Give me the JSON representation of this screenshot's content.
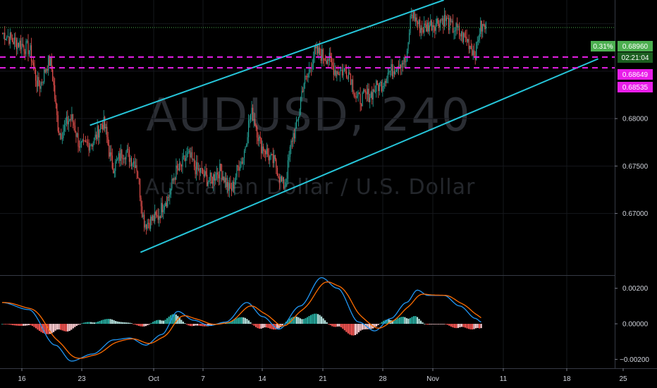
{
  "chart_data": {
    "type": "candlestick",
    "symbol_watermark": "AUDUSD, 240",
    "description_watermark": "Australian Dollar / U.S. Dollar",
    "price_axis": {
      "min": 0.6635,
      "max": 0.6925,
      "ticks": [
        "0.68000",
        "0.67500",
        "0.67000"
      ]
    },
    "macd_axis": {
      "min": -0.0025,
      "max": 0.0027,
      "ticks": [
        "0.00200",
        "0.00000",
        "−0.00200"
      ]
    },
    "x_ticks": [
      "16",
      "23",
      "Oct",
      "7",
      "14",
      "21",
      "28",
      "Nov",
      "11",
      "18",
      "25"
    ],
    "price_tags": {
      "change_pct": "0.31%",
      "last_price": "0.68960",
      "countdown": "02:21:04",
      "level_upper": "0.68649",
      "level_lower": "0.68535"
    },
    "horizontal_levels": [
      0.68649,
      0.68535
    ],
    "last_price_value": 0.6896,
    "channel_upper": {
      "start": [
        16.5,
        0.6793
      ],
      "end": [
        83,
        0.6925
      ]
    },
    "channel_lower": {
      "start": [
        26,
        0.6659
      ],
      "end": [
        112,
        0.6863
      ]
    },
    "anchors": [
      [
        0,
        0.689
      ],
      [
        3,
        0.688
      ],
      [
        5,
        0.6874
      ],
      [
        7,
        0.6835
      ],
      [
        9,
        0.686
      ],
      [
        11,
        0.6785
      ],
      [
        13,
        0.68
      ],
      [
        15,
        0.677
      ],
      [
        17,
        0.6775
      ],
      [
        19,
        0.6795
      ],
      [
        21,
        0.675
      ],
      [
        23,
        0.6765
      ],
      [
        25,
        0.6755
      ],
      [
        27,
        0.669
      ],
      [
        29,
        0.6695
      ],
      [
        31,
        0.6715
      ],
      [
        33,
        0.6745
      ],
      [
        35,
        0.676
      ],
      [
        37,
        0.6745
      ],
      [
        39,
        0.6735
      ],
      [
        41,
        0.6745
      ],
      [
        43,
        0.6725
      ],
      [
        45,
        0.6755
      ],
      [
        47,
        0.6805
      ],
      [
        49,
        0.677
      ],
      [
        51,
        0.6755
      ],
      [
        53,
        0.673
      ],
      [
        55,
        0.6785
      ],
      [
        57,
        0.684
      ],
      [
        59,
        0.687
      ],
      [
        61,
        0.6865
      ],
      [
        63,
        0.685
      ],
      [
        65,
        0.685
      ],
      [
        67,
        0.682
      ],
      [
        69,
        0.6825
      ],
      [
        71,
        0.6835
      ],
      [
        73,
        0.685
      ],
      [
        75,
        0.686
      ],
      [
        76,
        0.686
      ],
      [
        77,
        0.691
      ],
      [
        79,
        0.6895
      ],
      [
        81,
        0.69
      ],
      [
        83,
        0.6905
      ],
      [
        85,
        0.6895
      ],
      [
        87,
        0.6885
      ],
      [
        89,
        0.687
      ],
      [
        90,
        0.6896
      ]
    ],
    "macd_anchors": [
      [
        0,
        0.0012
      ],
      [
        5,
        0.0008
      ],
      [
        10,
        -0.0012
      ],
      [
        13,
        -0.0021
      ],
      [
        17,
        -0.0017
      ],
      [
        21,
        -0.0009
      ],
      [
        24,
        -0.0008
      ],
      [
        27,
        -0.0012
      ],
      [
        30,
        -0.0006
      ],
      [
        33,
        0.0007
      ],
      [
        36,
        0.0002
      ],
      [
        39,
        -0.0001
      ],
      [
        42,
        0.0001
      ],
      [
        46,
        0.0012
      ],
      [
        49,
        0.0004
      ],
      [
        52,
        -0.0003
      ],
      [
        56,
        0.001
      ],
      [
        60,
        0.0026
      ],
      [
        63,
        0.002
      ],
      [
        67,
        0.0001
      ],
      [
        70,
        -0.0004
      ],
      [
        73,
        0.0003
      ],
      [
        76,
        0.0012
      ],
      [
        78,
        0.0019
      ],
      [
        80,
        0.0016
      ],
      [
        83,
        0.0016
      ],
      [
        86,
        0.001
      ],
      [
        89,
        0.0003
      ],
      [
        90,
        0.0001
      ]
    ],
    "colors": {
      "up": "#26a69a",
      "down": "#ef5350",
      "channel": "#26c6da",
      "level": "#e91ee9",
      "macd": "#2196f3",
      "signal": "#ff6d00",
      "hist_up": "#26a69a",
      "hist_up_light": "#b2dfdb",
      "hist_down": "#ef5350",
      "hist_down_light": "#ffcdd2",
      "last_price": "#4caf50"
    }
  }
}
